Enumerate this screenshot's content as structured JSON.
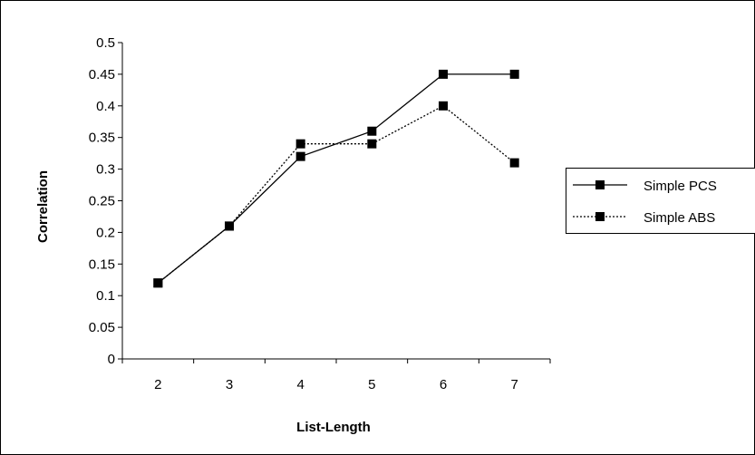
{
  "chart_data": {
    "type": "line",
    "title": "",
    "xlabel": "List-Length",
    "ylabel": "Correlation",
    "categories": [
      "2",
      "3",
      "4",
      "5",
      "6",
      "7"
    ],
    "ylim": [
      0,
      0.5
    ],
    "yticks": [
      "0",
      "0.05",
      "0.1",
      "0.15",
      "0.2",
      "0.25",
      "0.3",
      "0.35",
      "0.4",
      "0.45",
      "0.5"
    ],
    "grid": false,
    "legend_position": "right",
    "series": [
      {
        "name": "Simple PCS",
        "values": [
          0.12,
          0.21,
          0.32,
          0.36,
          0.45,
          0.45
        ],
        "line_style": "solid",
        "marker": "square",
        "color": "#000000"
      },
      {
        "name": "Simple ABS",
        "values": [
          0.12,
          0.21,
          0.34,
          0.34,
          0.4,
          0.31
        ],
        "line_style": "dotted",
        "marker": "square",
        "color": "#000000"
      }
    ]
  }
}
